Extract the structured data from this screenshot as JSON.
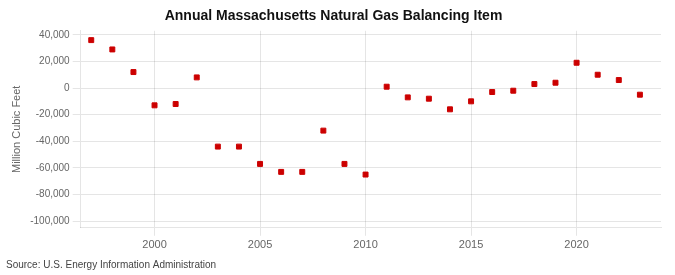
{
  "chart_data": {
    "type": "scatter",
    "title": "Annual Massachusetts Natural Gas Balancing Item",
    "ylabel": "Million Cubic Feet",
    "source": "Source: U.S. Energy Information Administration",
    "x": [
      1997,
      1998,
      1999,
      2000,
      2001,
      2002,
      2003,
      2004,
      2005,
      2006,
      2007,
      2008,
      2009,
      2010,
      2011,
      2012,
      2013,
      2014,
      2015,
      2016,
      2017,
      2018,
      2019,
      2020,
      2021,
      2022,
      2023
    ],
    "values": [
      36000,
      29000,
      12000,
      -13000,
      -12000,
      8000,
      -44000,
      -44000,
      -57000,
      -63000,
      -63000,
      -32000,
      -57000,
      -65000,
      1000,
      -7000,
      -8000,
      -16000,
      -10000,
      -3000,
      -2000,
      3000,
      4000,
      19000,
      10000,
      6000,
      -5000
    ],
    "color": "#cc0000",
    "marker": "square",
    "xlim": [
      1996.5,
      2024
    ],
    "xticks": [
      2000,
      2005,
      2010,
      2015,
      2020
    ],
    "ylim": [
      -105000,
      43000
    ],
    "yticks": [
      {
        "value": -100000,
        "label": "-100,000"
      },
      {
        "value": -80000,
        "label": "-80,000"
      },
      {
        "value": -60000,
        "label": "-60,000"
      },
      {
        "value": -40000,
        "label": "-40,000"
      },
      {
        "value": -20000,
        "label": "-20,000"
      },
      0,
      {
        "value": 20000,
        "label": "20,000"
      },
      {
        "value": 40000,
        "label": "40,000"
      }
    ],
    "grid": true
  }
}
